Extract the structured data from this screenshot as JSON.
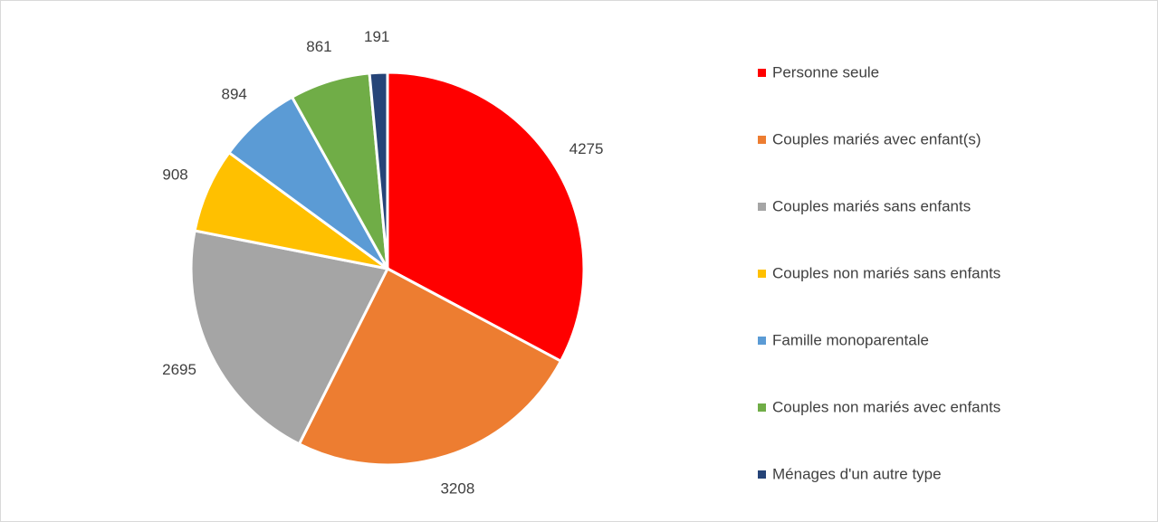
{
  "chart_data": {
    "type": "pie",
    "categories": [
      "Personne seule",
      "Couples mariés avec enfant(s)",
      "Couples mariés sans enfants",
      "Couples non mariés sans enfants",
      "Famille monoparentale",
      "Couples non mariés avec enfants",
      "Ménages d'un autre type"
    ],
    "values": [
      4275,
      3208,
      2695,
      908,
      894,
      861,
      191
    ],
    "colors": [
      "#ff0000",
      "#ed7d31",
      "#a5a5a5",
      "#ffc000",
      "#5b9bd5",
      "#70ad47",
      "#264478"
    ],
    "legend": "right"
  }
}
